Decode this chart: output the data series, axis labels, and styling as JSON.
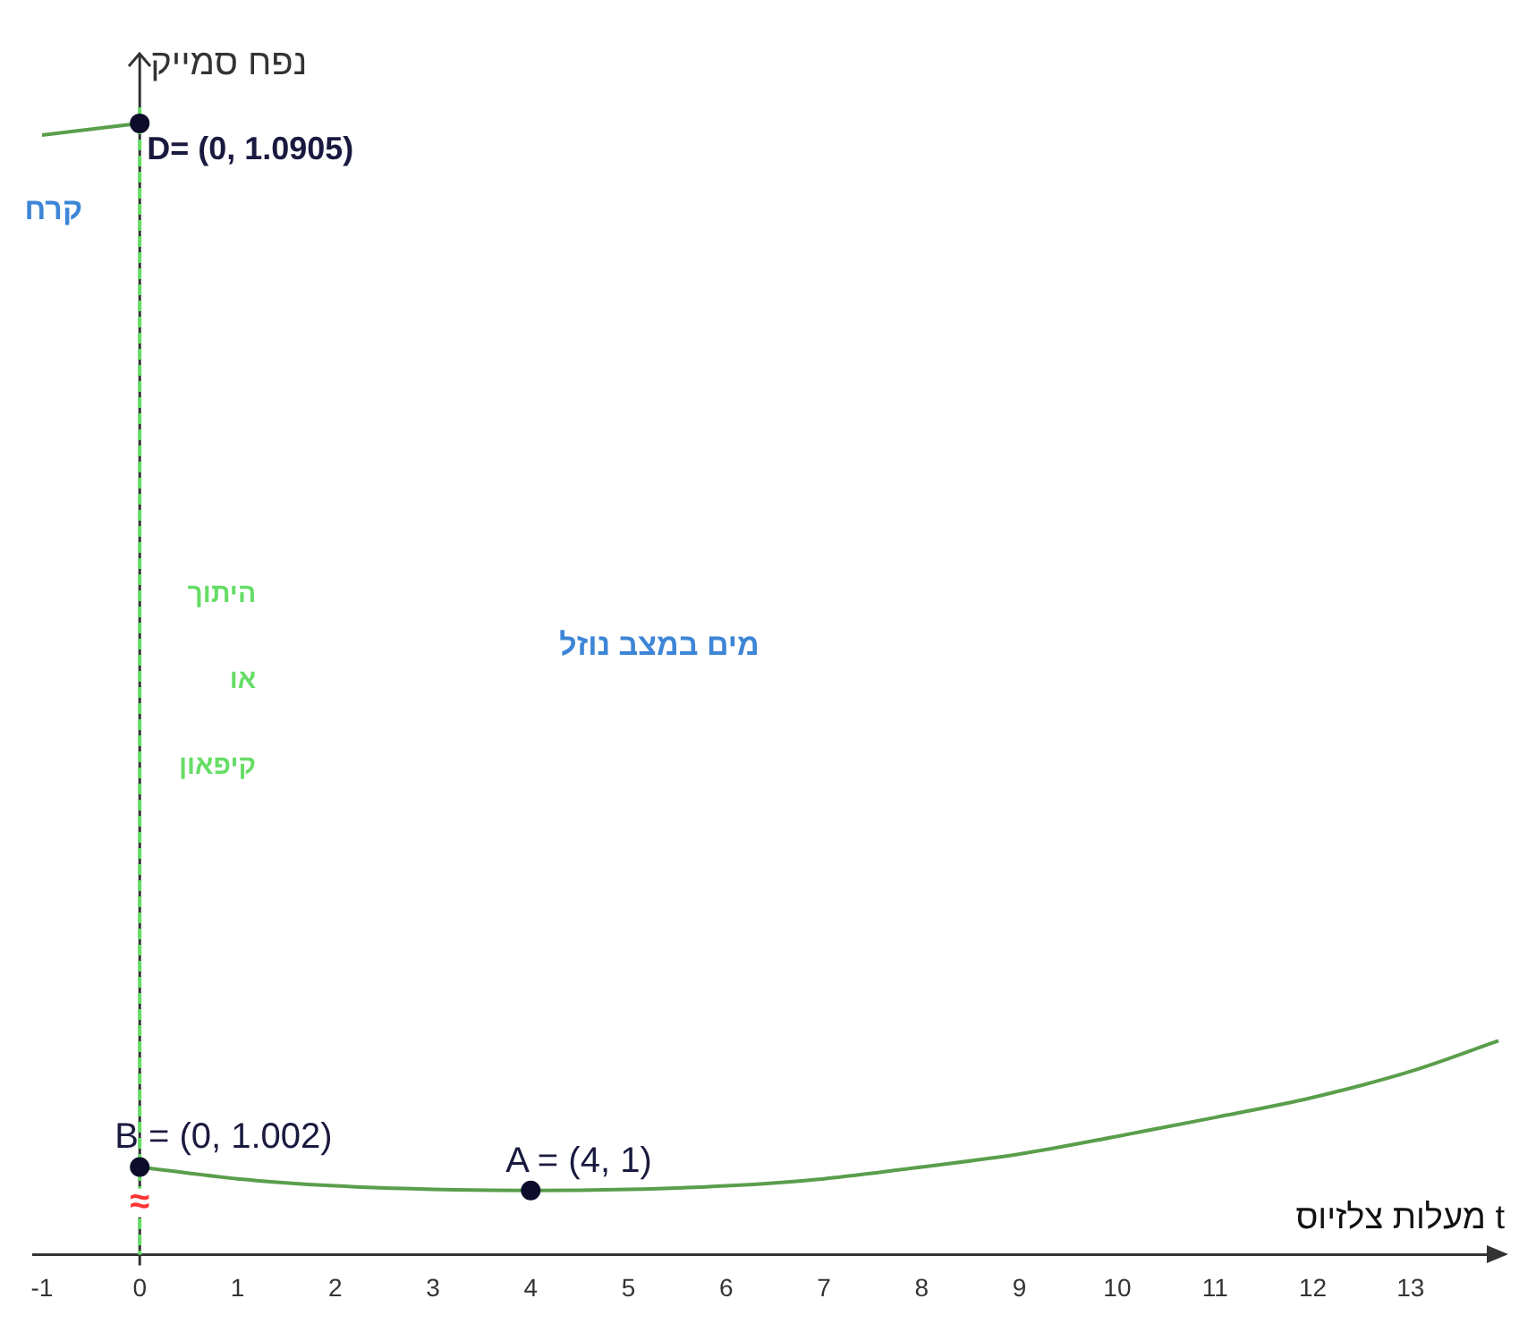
{
  "chart_data": {
    "type": "line",
    "xlabel": "t מעלות צלזיוס",
    "ylabel": "נפח סמייק",
    "xlim": [
      -1.1,
      14
    ],
    "xticks": [
      -1,
      0,
      1,
      2,
      3,
      4,
      5,
      6,
      7,
      8,
      9,
      10,
      11,
      12,
      13
    ],
    "tick_labels": "x",
    "series": [
      {
        "color": "#5a9e4b",
        "x": [
          -1,
          0
        ],
        "values": [
          1.0895,
          1.0905
        ]
      },
      {
        "color": "#5a9e4b",
        "x": [
          0,
          1,
          2,
          3,
          4,
          5,
          6,
          7,
          8,
          9,
          10,
          11,
          12,
          13,
          13.9
        ],
        "values": [
          1.002,
          1.001,
          1.0004,
          1.0001,
          1,
          1.0001,
          1.0004,
          1.001,
          1.002,
          1.0031,
          1.0046,
          1.0062,
          1.0079,
          1.0101,
          1.0127
        ]
      },
      {
        "type": "scatter",
        "color": "#0d0d2b",
        "x": [
          0,
          0,
          4
        ],
        "values": [
          1.0905,
          1.002,
          1
        ],
        "value_labels": [
          "D= (0, 1.0905)",
          "B = (0, 1.002)",
          "A = (4, 1)"
        ]
      }
    ],
    "ref_lines": [
      {
        "axis": "x",
        "value": 0,
        "label": "היתוך או קיפאון",
        "color": "#66dd66",
        "line_style": "dashed"
      }
    ],
    "annotations": [
      "קרח",
      "מים במצב נוזל",
      "≈"
    ]
  }
}
